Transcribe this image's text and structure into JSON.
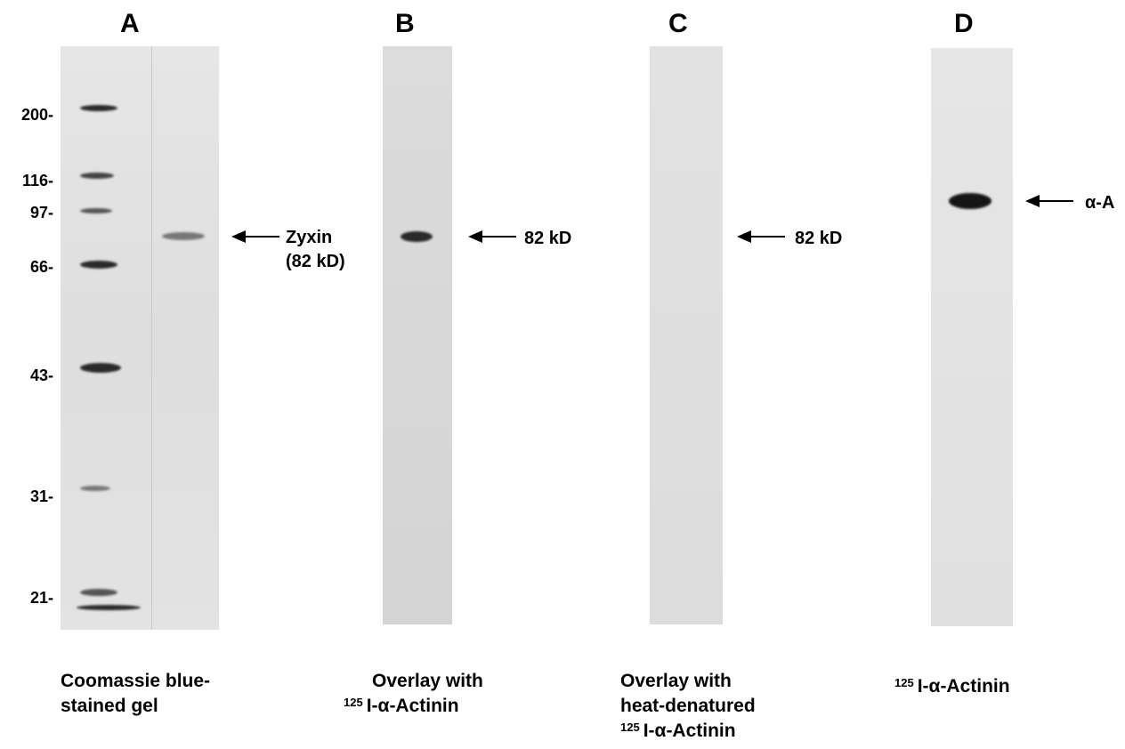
{
  "panels": {
    "a": {
      "letter": "A"
    },
    "b": {
      "letter": "B"
    },
    "c": {
      "letter": "C"
    },
    "d": {
      "letter": "D"
    }
  },
  "markers": {
    "m200": "200-",
    "m116": "116-",
    "m97": "97-",
    "m66": "66-",
    "m43": "43-",
    "m31": "31-",
    "m21": "21-"
  },
  "annotations": {
    "zyxin": "Zyxin",
    "zyxin_mw": "(82 kD)",
    "b_82": "82 kD",
    "c_82": "82 kD",
    "alpha_a": "α-A"
  },
  "captions": {
    "a_line1": "Coomassie blue-",
    "a_line2": "stained gel",
    "b_line1": "Overlay with",
    "b_sup": "125",
    "b_line2": "I-α-Actinin",
    "c_line1": "Overlay with",
    "c_line2": "heat-denatured",
    "c_sup": "125",
    "c_line3": "I-α-Actinin",
    "d_sup": "125",
    "d_line1": "I-α-Actinin"
  }
}
